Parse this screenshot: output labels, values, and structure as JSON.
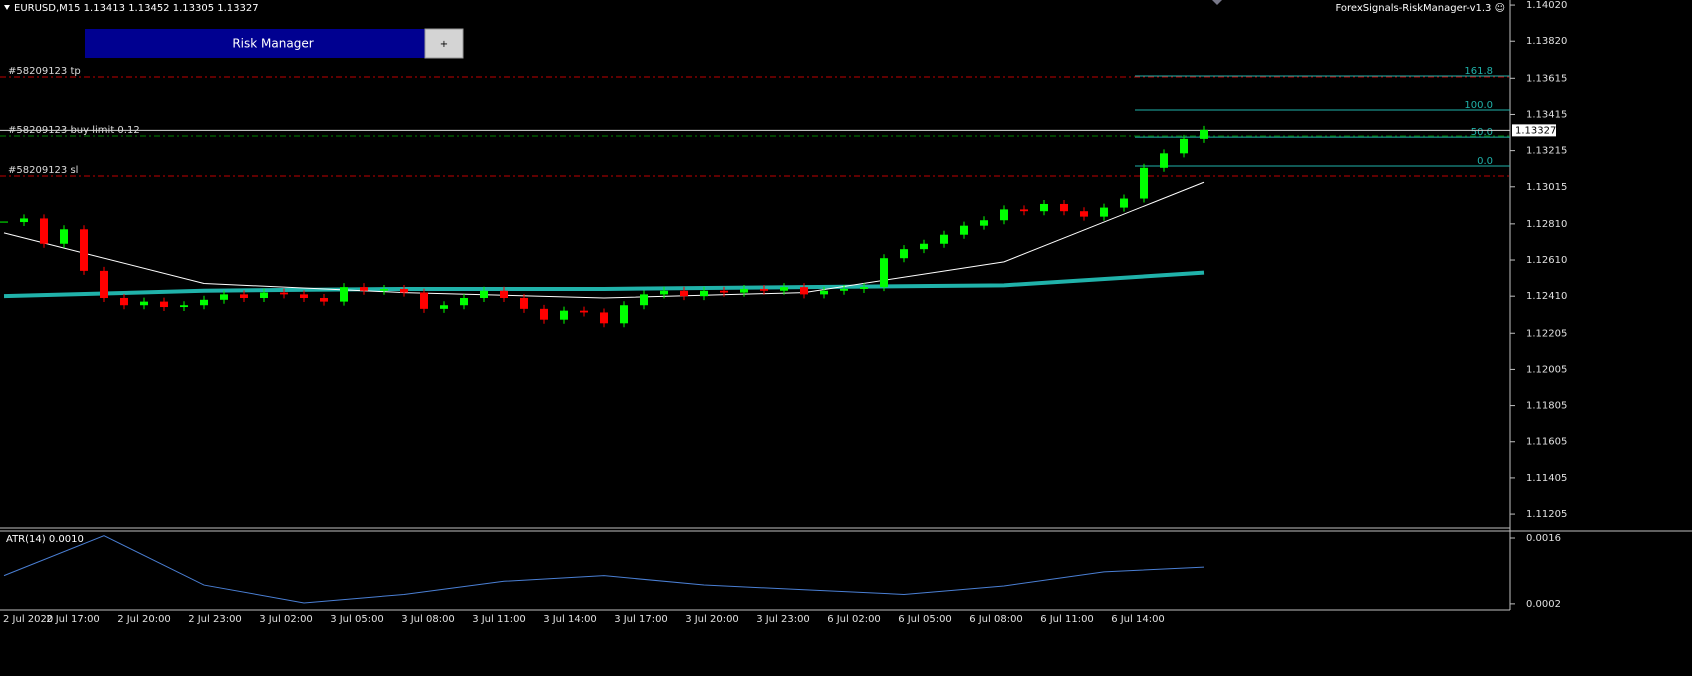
{
  "header": {
    "symbol_info": "EURUSD,M15  1.13413 1.13452 1.13305 1.13327",
    "expert": "ForexSignals-RiskManager-v1.3 ☺"
  },
  "panel": {
    "title": "Risk Manager",
    "button": "+"
  },
  "chart_data": [
    {
      "type": "candlestick",
      "closes": [
        1.1282,
        1.1284,
        1.127,
        1.1278,
        1.1255,
        1.124,
        1.1236,
        1.1238,
        1.1235,
        1.1236,
        1.1239,
        1.1242,
        1.124,
        1.1243,
        1.1242,
        1.124,
        1.1238,
        1.1246,
        1.1244,
        1.1245,
        1.1243,
        1.1234,
        1.1236,
        1.124,
        1.1244,
        1.124,
        1.1234,
        1.1228,
        1.1233,
        1.1232,
        1.1226,
        1.1236,
        1.1242,
        1.1244,
        1.1241,
        1.1244,
        1.1243,
        1.1245,
        1.1244,
        1.1246,
        1.1242,
        1.1244,
        1.1245,
        1.1246,
        1.1262,
        1.1267,
        1.127,
        1.1275,
        1.128,
        1.1283,
        1.1289,
        1.1288,
        1.1292,
        1.1288,
        1.1285,
        1.129,
        1.1295,
        1.1312,
        1.132,
        1.1328,
        1.1333
      ],
      "up_color": "#00ff00",
      "down_color": "#ff0000",
      "ylim": [
        1.11128,
        1.14048
      ],
      "yticks": [
        {
          "value": 1.1402,
          "label": "1.14020"
        },
        {
          "value": 1.1382,
          "label": "1.13820"
        },
        1.13615,
        1.13415,
        1.13215,
        1.13015,
        {
          "value": 1.1281,
          "label": "1.12810"
        },
        {
          "value": 1.1261,
          "label": "1.12610"
        },
        {
          "value": 1.1241,
          "label": "1.12410"
        },
        1.12205,
        1.12005,
        1.11805,
        1.11605,
        1.11405,
        1.11205
      ],
      "current_price": 1.13327,
      "ma": [
        {
          "color": "#20b2aa",
          "values": [
            1.1241,
            1.1244,
            1.1245,
            1.1245,
            1.1246,
            1.1247,
            1.1254
          ]
        },
        {
          "color": "#ffffff",
          "values": [
            1.1276,
            1.1248,
            1.1243,
            1.124,
            1.1243,
            1.126,
            1.1304
          ]
        }
      ],
      "orders": [
        {
          "label": "#58209123 tp",
          "price": 1.13622,
          "color": "#c00000"
        },
        {
          "label": "#58209123 buy limit 0.12",
          "price": 1.13296,
          "color": "#008000"
        },
        {
          "label": "#58209123 sl",
          "price": 1.13075,
          "color": "#c00000"
        }
      ],
      "fibo": [
        {
          "label": "161.8",
          "price": 1.13628
        },
        {
          "label": "100.0",
          "price": 1.1344
        },
        {
          "label": "50.0",
          "price": 1.1329
        },
        {
          "label": "0.0",
          "price": 1.1313
        }
      ],
      "xlabels": [
        "2 Jul 2020",
        "2 Jul 17:00",
        "2 Jul 20:00",
        "2 Jul 23:00",
        "3 Jul 02:00",
        "3 Jul 05:00",
        "3 Jul 08:00",
        "3 Jul 11:00",
        "3 Jul 14:00",
        "3 Jul 17:00",
        "3 Jul 20:00",
        "3 Jul 23:00",
        "6 Jul 02:00",
        "6 Jul 05:00",
        "6 Jul 08:00",
        "6 Jul 11:00",
        "6 Jul 14:00"
      ]
    },
    {
      "type": "line",
      "title": "ATR(14) 0.0010",
      "values": [
        0.0008,
        0.00165,
        0.0006,
        0.00022,
        0.0004,
        0.00068,
        0.0008,
        0.0006,
        0.0005,
        0.0004,
        0.00058,
        0.00088,
        0.00098
      ],
      "color": "#4a7fd4",
      "ylim": [
        7e-05,
        0.00177
      ],
      "yticks": [
        0.0016,
        0.0002
      ]
    }
  ]
}
